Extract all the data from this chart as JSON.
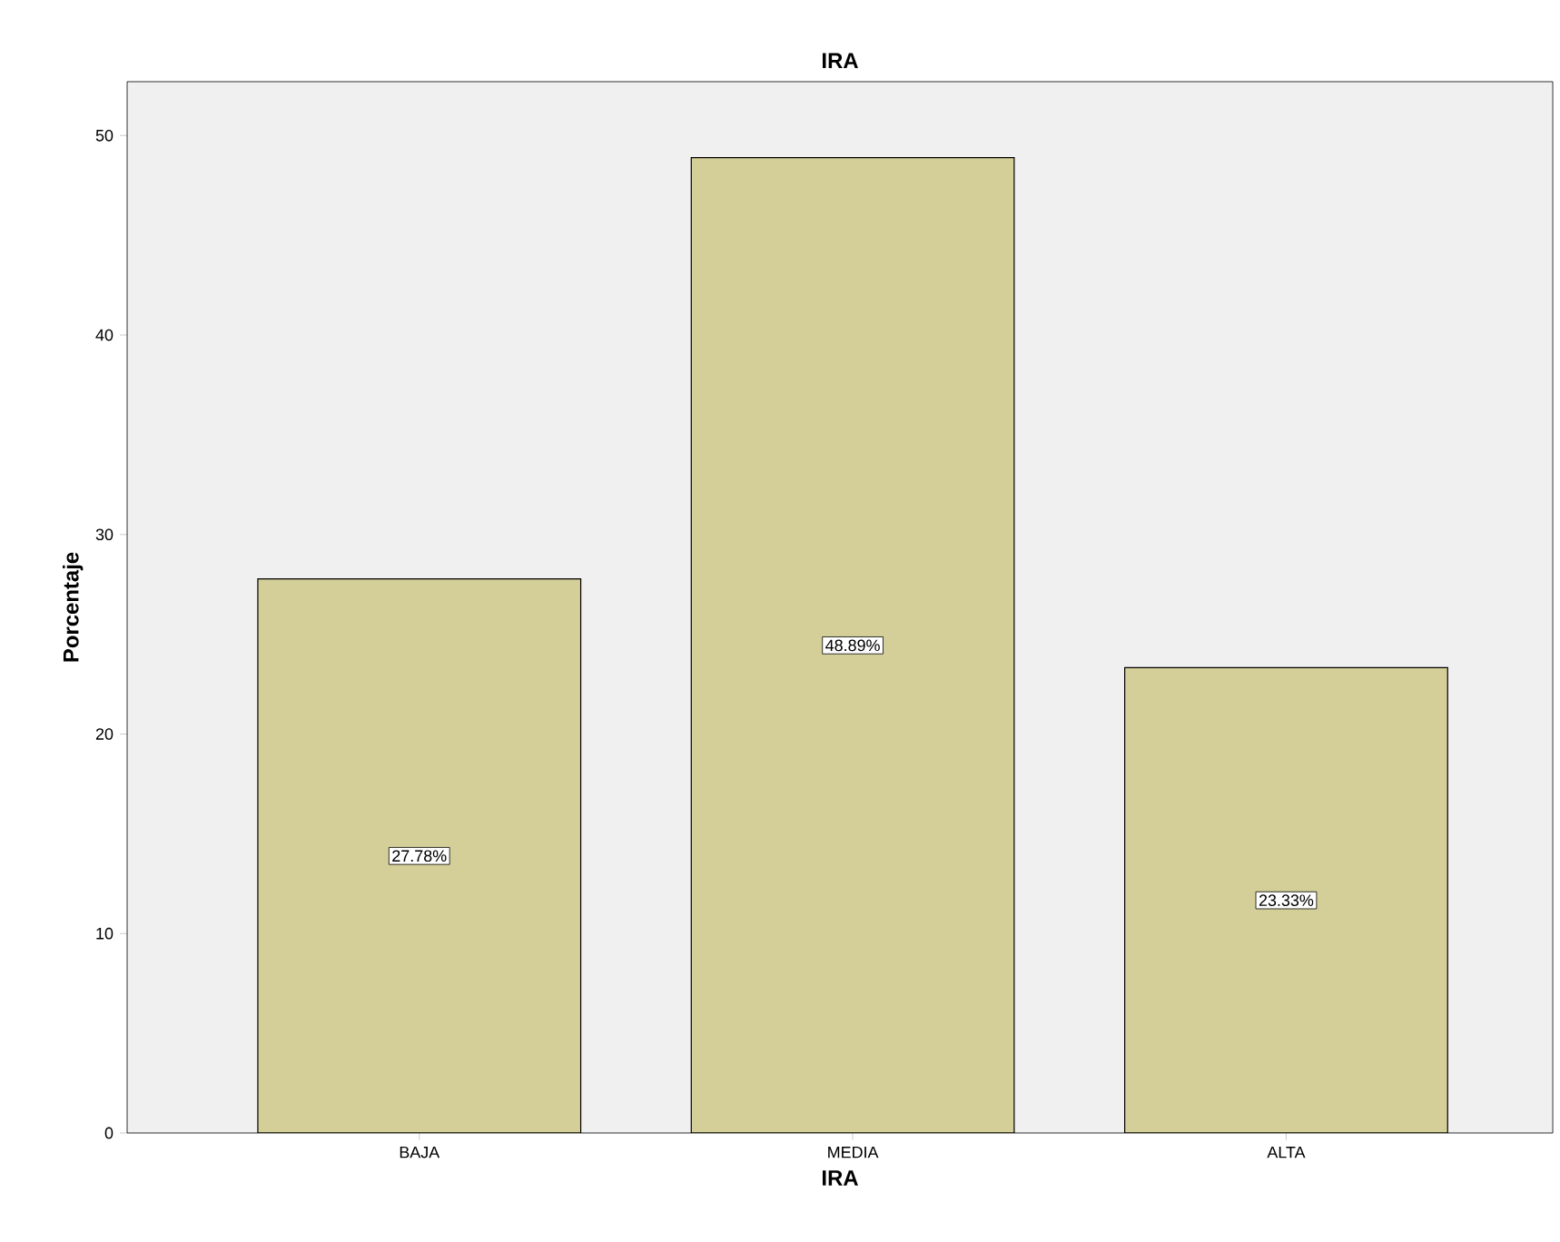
{
  "chart_data": {
    "type": "bar",
    "title": "IRA",
    "xlabel": "IRA",
    "ylabel": "Porcentaje",
    "categories": [
      "BAJA",
      "MEDIA",
      "ALTA"
    ],
    "values": [
      27.78,
      48.89,
      23.33
    ],
    "value_labels": [
      "27.78%",
      "48.89%",
      "23.33%"
    ],
    "color": "#d4cf99",
    "ylim": [
      0,
      52.7
    ],
    "yticks": [
      0,
      10,
      20,
      30,
      40,
      50
    ]
  }
}
